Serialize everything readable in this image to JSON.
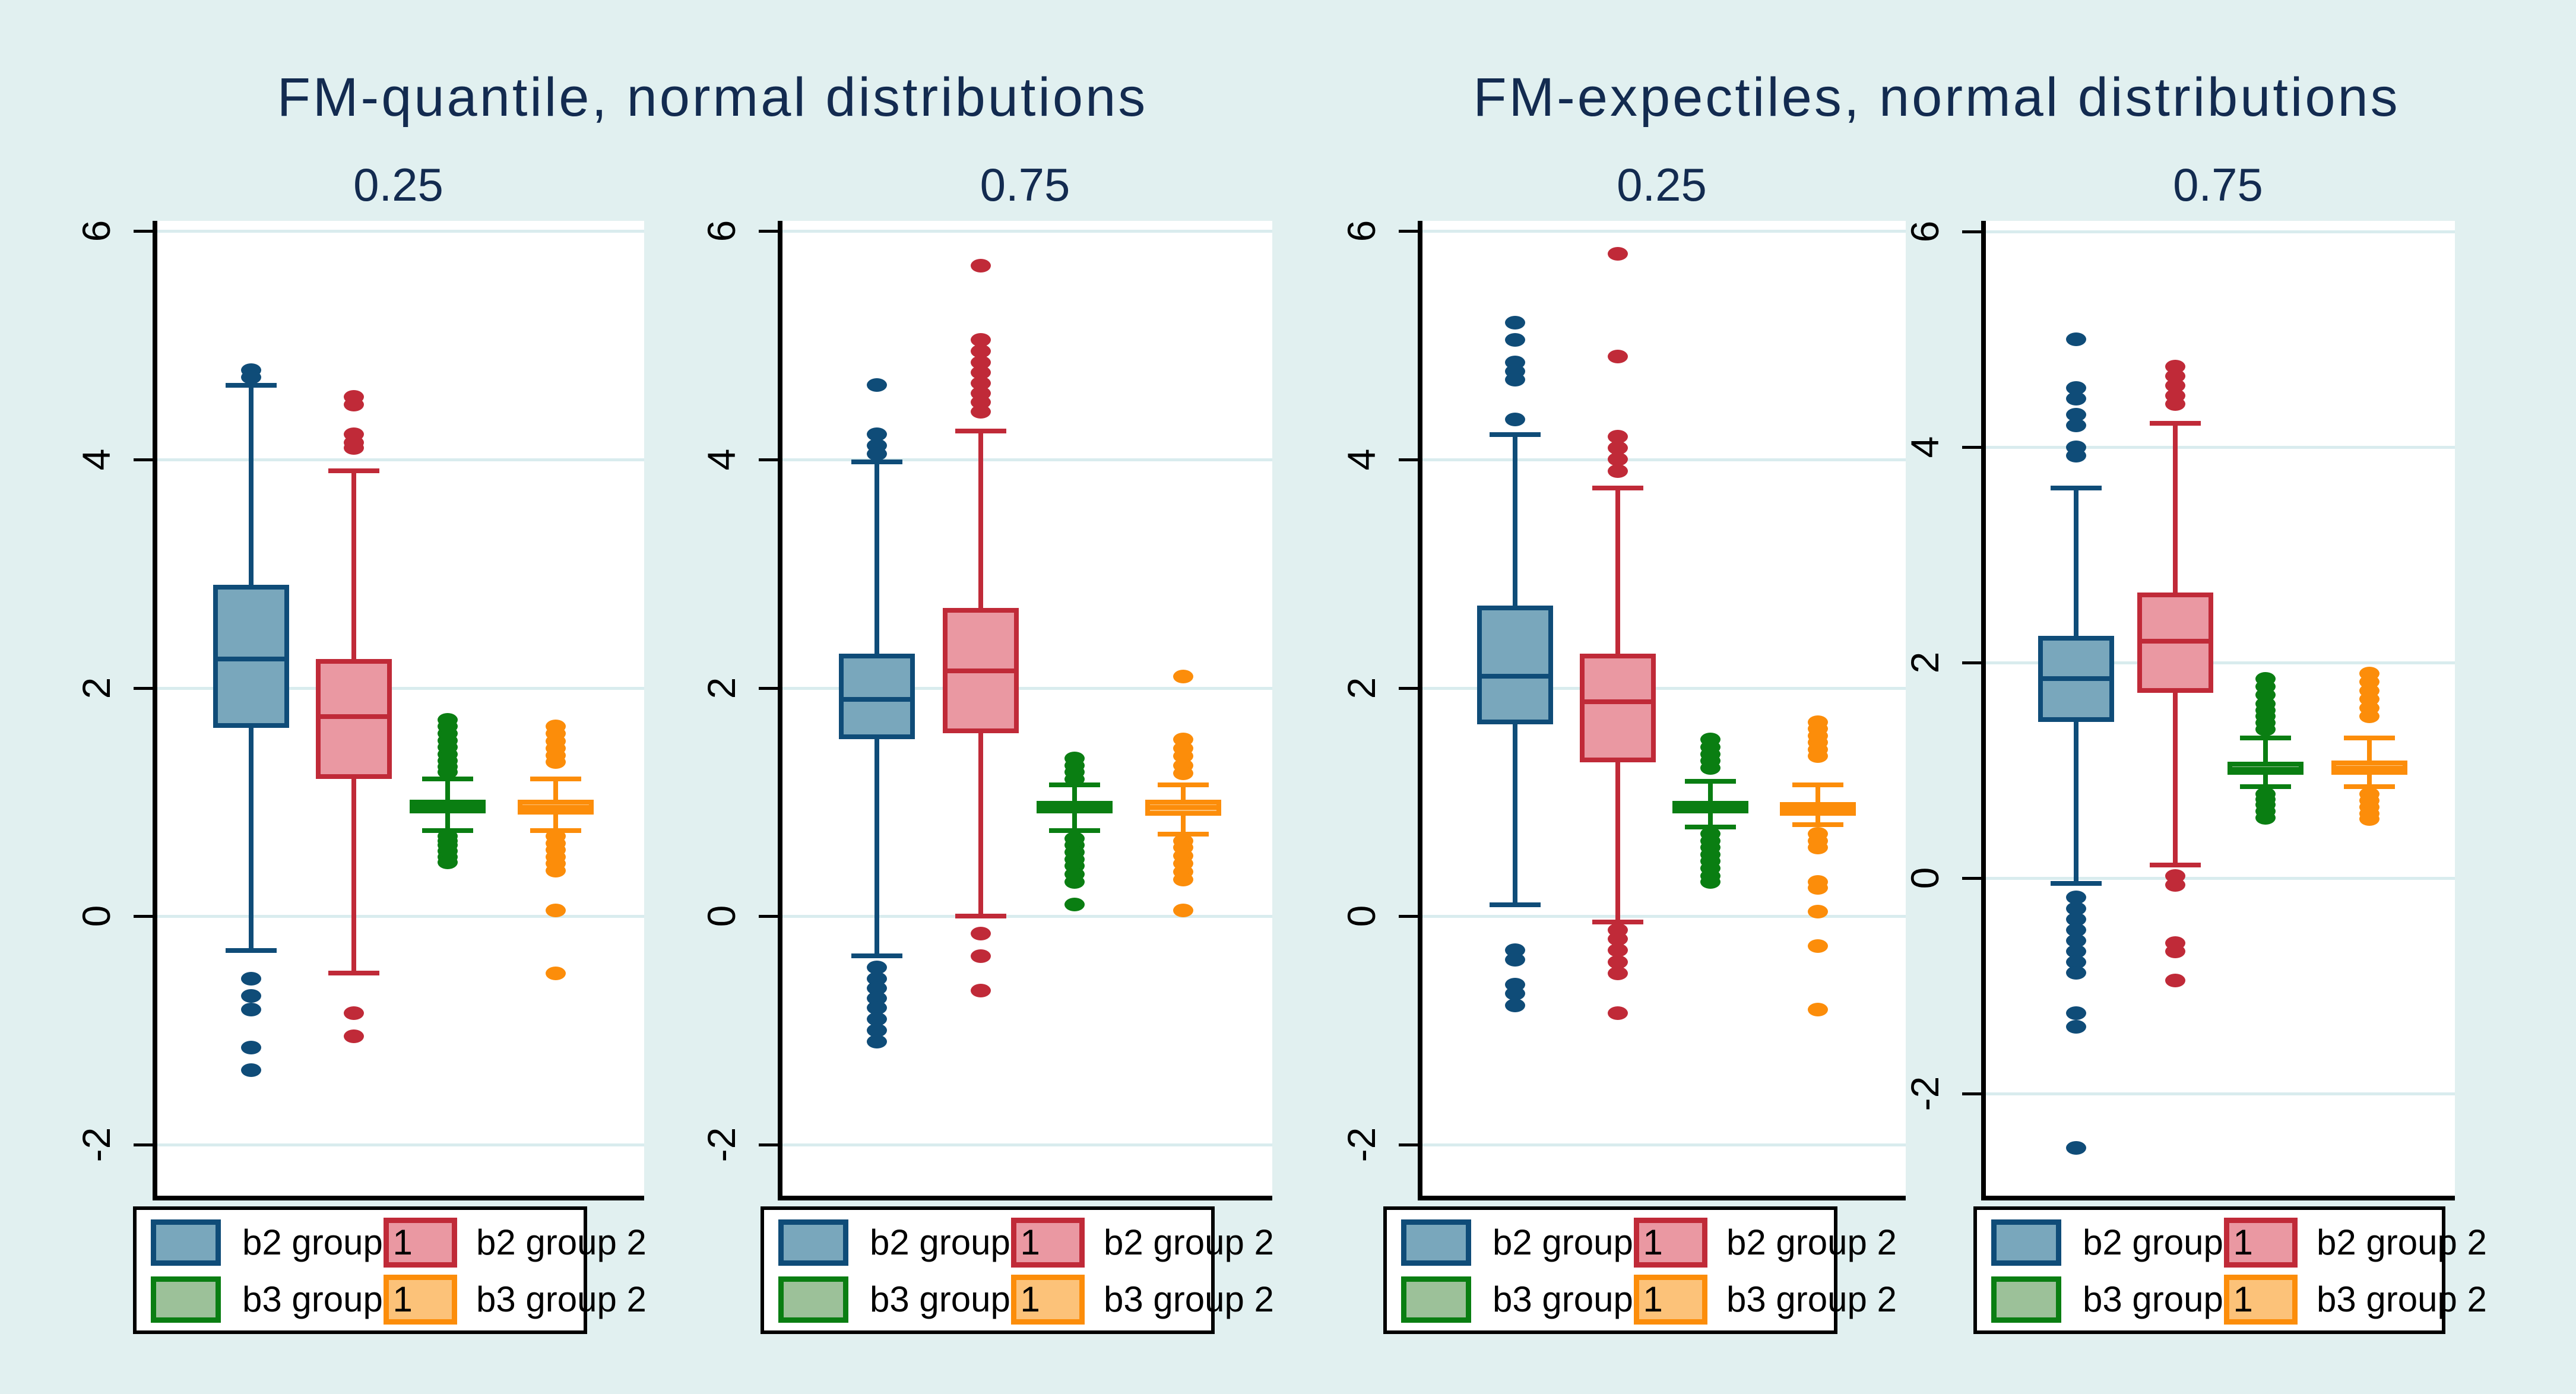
{
  "figure": {
    "title_left": "FM-quantile, normal distributions",
    "title_right": "FM-expectiles, normal distributions",
    "background": "#e1f0f0",
    "plot_background": "#ffffff",
    "grid_color": "#d9ecee",
    "axis_color": "#000000",
    "title_color": "#132b50"
  },
  "series_styles": {
    "b2g1": {
      "label": "b2 group 1",
      "fill": "#79a7bc",
      "stroke": "#0f4c78"
    },
    "b2g2": {
      "label": "b2 group 2",
      "fill": "#ea98a2",
      "stroke": "#c02a38"
    },
    "b3g1": {
      "label": "b3 group 1",
      "fill": "#9cc199",
      "stroke": "#0a7e12"
    },
    "b3g2": {
      "label": "b3 group 2",
      "fill": "#fcc279",
      "stroke": "#fc8d0a"
    }
  },
  "legend": {
    "rows": [
      [
        "b2g1",
        "b2g2"
      ],
      [
        "b3g1",
        "b3g2"
      ]
    ]
  },
  "chart_data": [
    {
      "type": "boxplot",
      "group_title": "FM-quantile, normal distributions",
      "title": "0.25",
      "ylim": [
        -2.49,
        6.09
      ],
      "yticks": [
        -2,
        0,
        2,
        4,
        6
      ],
      "grid": true,
      "boxes": [
        {
          "series": "b2 group 1",
          "color": "b2g1",
          "whisker_low": -0.3,
          "q1": 1.65,
          "median": 2.25,
          "q3": 2.9,
          "whisker_high": 4.65,
          "outliers_high": [
            4.78,
            4.72
          ],
          "outliers_low": [
            -0.55,
            -0.7,
            -0.82,
            -1.15,
            -1.35
          ]
        },
        {
          "series": "b2 group 2",
          "color": "b2g2",
          "whisker_low": -0.5,
          "q1": 1.2,
          "median": 1.75,
          "q3": 2.25,
          "whisker_high": 3.9,
          "outliers_high": [
            4.55,
            4.48,
            4.22,
            4.15,
            4.1
          ],
          "outliers_low": [
            -0.85,
            -1.05
          ]
        },
        {
          "series": "b3 group 1",
          "color": "b3g1",
          "whisker_low": 0.75,
          "q1": 0.9,
          "median": 0.96,
          "q3": 1.02,
          "whisker_high": 1.2,
          "outliers_high": [
            1.26,
            1.31,
            1.36,
            1.42,
            1.48,
            1.54,
            1.6,
            1.66,
            1.72
          ],
          "outliers_low": [
            0.7,
            0.66,
            0.62,
            0.57,
            0.52,
            0.47
          ]
        },
        {
          "series": "b3 group 2",
          "color": "b3g2",
          "whisker_low": 0.75,
          "q1": 0.89,
          "median": 0.95,
          "q3": 1.02,
          "whisker_high": 1.2,
          "outliers_high": [
            1.35,
            1.41,
            1.47,
            1.53,
            1.6,
            1.66
          ],
          "outliers_low": [
            0.7,
            0.64,
            0.58,
            0.52,
            0.46,
            0.4,
            0.05,
            -0.5
          ]
        }
      ]
    },
    {
      "type": "boxplot",
      "group_title": "FM-quantile, normal distributions",
      "title": "0.75",
      "ylim": [
        -2.49,
        6.09
      ],
      "yticks": [
        -2,
        0,
        2,
        4,
        6
      ],
      "grid": true,
      "boxes": [
        {
          "series": "b2 group 1",
          "color": "b2g1",
          "whisker_low": -0.35,
          "q1": 1.55,
          "median": 1.9,
          "q3": 2.3,
          "whisker_high": 3.98,
          "outliers_high": [
            4.65,
            4.22,
            4.12,
            4.05
          ],
          "outliers_low": [
            -0.45,
            -0.55,
            -0.63,
            -0.72,
            -0.8,
            -0.9,
            -1.0,
            -1.1
          ]
        },
        {
          "series": "b2 group 2",
          "color": "b2g2",
          "whisker_low": 0.0,
          "q1": 1.6,
          "median": 2.15,
          "q3": 2.7,
          "whisker_high": 4.25,
          "outliers_high": [
            5.7,
            5.05,
            4.95,
            4.85,
            4.76,
            4.67,
            4.58,
            4.5,
            4.42
          ],
          "outliers_low": [
            -0.15,
            -0.35,
            -0.65
          ]
        },
        {
          "series": "b3 group 1",
          "color": "b3g1",
          "whisker_low": 0.75,
          "q1": 0.9,
          "median": 0.95,
          "q3": 1.01,
          "whisker_high": 1.15,
          "outliers_high": [
            1.2,
            1.26,
            1.32,
            1.38
          ],
          "outliers_low": [
            0.68,
            0.62,
            0.56,
            0.5,
            0.44,
            0.37,
            0.3,
            0.1
          ]
        },
        {
          "series": "b3 group 2",
          "color": "b3g2",
          "whisker_low": 0.72,
          "q1": 0.88,
          "median": 0.95,
          "q3": 1.02,
          "whisker_high": 1.15,
          "outliers_high": [
            2.1,
            1.55,
            1.47,
            1.4,
            1.32,
            1.25
          ],
          "outliers_low": [
            0.66,
            0.6,
            0.53,
            0.46,
            0.39,
            0.32,
            0.05
          ]
        }
      ]
    },
    {
      "type": "boxplot",
      "group_title": "FM-expectiles, normal distributions",
      "title": "0.25",
      "ylim": [
        -2.49,
        6.09
      ],
      "yticks": [
        -2,
        0,
        2,
        4,
        6
      ],
      "grid": true,
      "boxes": [
        {
          "series": "b2 group 1",
          "color": "b2g1",
          "whisker_low": 0.1,
          "q1": 1.68,
          "median": 2.1,
          "q3": 2.72,
          "whisker_high": 4.22,
          "outliers_high": [
            5.2,
            5.05,
            4.85,
            4.77,
            4.7,
            4.35
          ],
          "outliers_low": [
            -0.3,
            -0.38,
            -0.6,
            -0.68,
            -0.78
          ]
        },
        {
          "series": "b2 group 2",
          "color": "b2g2",
          "whisker_low": -0.05,
          "q1": 1.35,
          "median": 1.88,
          "q3": 2.3,
          "whisker_high": 3.75,
          "outliers_high": [
            5.8,
            4.9,
            4.2,
            4.1,
            4.0,
            3.9
          ],
          "outliers_low": [
            -0.12,
            -0.2,
            -0.3,
            -0.4,
            -0.5,
            -0.85
          ]
        },
        {
          "series": "b3 group 1",
          "color": "b3g1",
          "whisker_low": 0.78,
          "q1": 0.9,
          "median": 0.95,
          "q3": 1.01,
          "whisker_high": 1.18,
          "outliers_high": [
            1.3,
            1.36,
            1.42,
            1.48,
            1.55
          ],
          "outliers_low": [
            0.72,
            0.66,
            0.6,
            0.54,
            0.48,
            0.42,
            0.35,
            0.3
          ]
        },
        {
          "series": "b3 group 2",
          "color": "b3g2",
          "whisker_low": 0.8,
          "q1": 0.88,
          "median": 0.94,
          "q3": 1.0,
          "whisker_high": 1.15,
          "outliers_high": [
            1.4,
            1.46,
            1.52,
            1.58,
            1.64,
            1.7
          ],
          "outliers_low": [
            0.72,
            0.66,
            0.6,
            0.3,
            0.25,
            0.04,
            -0.26,
            -0.82
          ]
        }
      ]
    },
    {
      "type": "boxplot",
      "group_title": "FM-expectiles, normal distributions",
      "title": "0.75",
      "ylim": [
        -2.99,
        6.1
      ],
      "yticks": [
        -2,
        0,
        2,
        4,
        6
      ],
      "grid": true,
      "boxes": [
        {
          "series": "b2 group 1",
          "color": "b2g1",
          "whisker_low": -0.05,
          "q1": 1.45,
          "median": 1.85,
          "q3": 2.25,
          "whisker_high": 3.62,
          "outliers_high": [
            5.0,
            4.55,
            4.45,
            4.3,
            4.2,
            4.0,
            3.92
          ],
          "outliers_low": [
            -0.18,
            -0.28,
            -0.38,
            -0.48,
            -0.58,
            -0.68,
            -0.78,
            -0.88,
            -1.25,
            -1.38,
            -2.5
          ]
        },
        {
          "series": "b2 group 2",
          "color": "b2g2",
          "whisker_low": 0.12,
          "q1": 1.72,
          "median": 2.2,
          "q3": 2.65,
          "whisker_high": 4.22,
          "outliers_high": [
            4.75,
            4.66,
            4.57,
            4.48,
            4.4
          ],
          "outliers_low": [
            0.02,
            -0.06,
            -0.6,
            -0.68,
            -0.95
          ]
        },
        {
          "series": "b3 group 1",
          "color": "b3g1",
          "whisker_low": 0.85,
          "q1": 0.96,
          "median": 1.01,
          "q3": 1.08,
          "whisker_high": 1.3,
          "outliers_high": [
            1.38,
            1.44,
            1.5,
            1.56,
            1.62,
            1.7,
            1.78,
            1.85
          ],
          "outliers_low": [
            0.78,
            0.73,
            0.68,
            0.62,
            0.56
          ]
        },
        {
          "series": "b3 group 2",
          "color": "b3g2",
          "whisker_low": 0.85,
          "q1": 0.96,
          "median": 1.02,
          "q3": 1.09,
          "whisker_high": 1.3,
          "outliers_high": [
            1.5,
            1.58,
            1.66,
            1.74,
            1.82,
            1.9
          ],
          "outliers_low": [
            0.78,
            0.72,
            0.66,
            0.6,
            0.55
          ]
        }
      ]
    }
  ]
}
